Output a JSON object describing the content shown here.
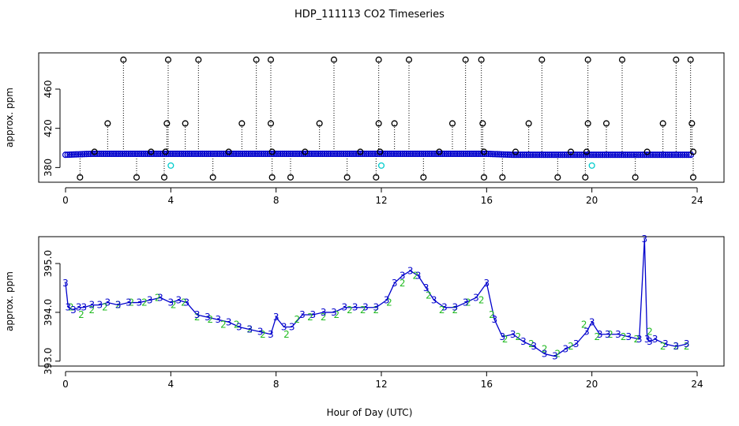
{
  "title": "HDP_111113  CO2 Timeseries",
  "xlabel": "Hour of Day (UTC)",
  "colors": {
    "outer_points": "#000000",
    "main_points": "#0000cc",
    "cyan_points": "#00cccc",
    "line": "#0000cc",
    "green_points": "#22bb22",
    "blue_labels": "#0000cc"
  },
  "chart_data": [
    {
      "type": "scatter",
      "panel": "top",
      "ylabel": "approx. ppm",
      "xlim": [
        0,
        24
      ],
      "ylim": [
        365,
        497
      ],
      "x_ticks": [
        0,
        4,
        8,
        12,
        16,
        20,
        24
      ],
      "y_ticks": [
        380,
        420,
        460
      ],
      "baseline": {
        "x": [
          0,
          1,
          2,
          3,
          4,
          5,
          6,
          7,
          8,
          9,
          10,
          11,
          12,
          13,
          14,
          15,
          16,
          17,
          18,
          19,
          20,
          21,
          22,
          23,
          23.8
        ],
        "y": [
          393,
          394,
          394,
          394,
          394,
          394,
          394,
          394,
          394,
          394,
          394,
          394,
          394,
          394,
          394,
          394,
          394,
          393,
          393,
          393,
          393,
          393,
          393,
          393,
          393
        ]
      },
      "outliers_high": [
        {
          "x": 2.2,
          "y": 490
        },
        {
          "x": 3.9,
          "y": 490
        },
        {
          "x": 5.05,
          "y": 490
        },
        {
          "x": 7.25,
          "y": 490
        },
        {
          "x": 7.8,
          "y": 490
        },
        {
          "x": 10.2,
          "y": 490
        },
        {
          "x": 11.9,
          "y": 490
        },
        {
          "x": 13.05,
          "y": 490
        },
        {
          "x": 15.2,
          "y": 490
        },
        {
          "x": 15.8,
          "y": 490
        },
        {
          "x": 18.1,
          "y": 490
        },
        {
          "x": 19.85,
          "y": 490
        },
        {
          "x": 21.15,
          "y": 490
        },
        {
          "x": 23.2,
          "y": 490
        },
        {
          "x": 23.75,
          "y": 490
        }
      ],
      "outliers_mid": [
        {
          "x": 1.6,
          "y": 425
        },
        {
          "x": 3.85,
          "y": 425
        },
        {
          "x": 4.55,
          "y": 425
        },
        {
          "x": 6.7,
          "y": 425
        },
        {
          "x": 7.8,
          "y": 425
        },
        {
          "x": 9.65,
          "y": 425
        },
        {
          "x": 11.9,
          "y": 425
        },
        {
          "x": 12.5,
          "y": 425
        },
        {
          "x": 14.7,
          "y": 425
        },
        {
          "x": 15.85,
          "y": 425
        },
        {
          "x": 17.6,
          "y": 425
        },
        {
          "x": 19.85,
          "y": 425
        },
        {
          "x": 20.55,
          "y": 425
        },
        {
          "x": 22.7,
          "y": 425
        },
        {
          "x": 23.8,
          "y": 425
        }
      ],
      "outliers_low": [
        {
          "x": 0.55,
          "y": 370
        },
        {
          "x": 2.7,
          "y": 370
        },
        {
          "x": 3.75,
          "y": 370
        },
        {
          "x": 5.6,
          "y": 370
        },
        {
          "x": 7.85,
          "y": 370
        },
        {
          "x": 8.55,
          "y": 370
        },
        {
          "x": 10.7,
          "y": 370
        },
        {
          "x": 11.8,
          "y": 370
        },
        {
          "x": 13.6,
          "y": 370
        },
        {
          "x": 15.9,
          "y": 370
        },
        {
          "x": 16.6,
          "y": 370
        },
        {
          "x": 18.7,
          "y": 370
        },
        {
          "x": 19.75,
          "y": 370
        },
        {
          "x": 21.65,
          "y": 370
        },
        {
          "x": 23.85,
          "y": 370
        }
      ],
      "outliers_near": [
        {
          "x": 1.1,
          "y": 396
        },
        {
          "x": 3.25,
          "y": 396
        },
        {
          "x": 3.8,
          "y": 396
        },
        {
          "x": 6.2,
          "y": 396
        },
        {
          "x": 7.85,
          "y": 396
        },
        {
          "x": 9.1,
          "y": 396
        },
        {
          "x": 11.2,
          "y": 396
        },
        {
          "x": 11.95,
          "y": 396
        },
        {
          "x": 14.2,
          "y": 396
        },
        {
          "x": 15.9,
          "y": 396
        },
        {
          "x": 17.1,
          "y": 396
        },
        {
          "x": 19.2,
          "y": 396
        },
        {
          "x": 19.8,
          "y": 396
        },
        {
          "x": 22.1,
          "y": 396
        },
        {
          "x": 23.85,
          "y": 396
        }
      ],
      "cyan_points": [
        {
          "x": 4.0,
          "y": 382
        },
        {
          "x": 12.0,
          "y": 382
        },
        {
          "x": 20.0,
          "y": 382
        }
      ]
    },
    {
      "type": "line",
      "panel": "bottom",
      "ylabel": "approx. ppm",
      "xlim": [
        0,
        24
      ],
      "ylim": [
        392.9,
        395.55
      ],
      "x_ticks": [
        0,
        4,
        8,
        12,
        16,
        20,
        24
      ],
      "y_ticks": [
        393.0,
        394.0,
        395.0
      ],
      "series": [
        {
          "marker": "3",
          "x": [
            0.0,
            0.1,
            0.3,
            0.5,
            0.7,
            1.0,
            1.3,
            1.6,
            2.0,
            2.4,
            2.8,
            3.2,
            3.6,
            4.0,
            4.3,
            4.6,
            5.0,
            5.4,
            5.8,
            6.2,
            6.6,
            7.0,
            7.4,
            7.8,
            8.0,
            8.3,
            8.6,
            9.0,
            9.4,
            9.8,
            10.2,
            10.6,
            11.0,
            11.4,
            11.8,
            12.2,
            12.5,
            12.8,
            13.1,
            13.4,
            13.7,
            14.0,
            14.4,
            14.8,
            15.2,
            15.6,
            16.0,
            16.3,
            16.6,
            17.0,
            17.4,
            17.8,
            18.2,
            18.6,
            19.0,
            19.4,
            19.8,
            20.0,
            20.3,
            20.6,
            21.0,
            21.4,
            21.8,
            22.0,
            22.1,
            22.2,
            22.4,
            22.8,
            23.2,
            23.6
          ],
          "y": [
            394.6,
            394.1,
            394.05,
            394.1,
            394.1,
            394.15,
            394.15,
            394.2,
            394.15,
            394.2,
            394.2,
            394.25,
            394.3,
            394.2,
            394.25,
            394.2,
            393.95,
            393.9,
            393.85,
            393.8,
            393.7,
            393.65,
            393.6,
            393.55,
            393.9,
            393.7,
            393.7,
            393.95,
            393.95,
            394.0,
            394.0,
            394.1,
            394.1,
            394.1,
            394.1,
            394.25,
            394.6,
            394.75,
            394.85,
            394.75,
            394.5,
            394.25,
            394.1,
            394.1,
            394.2,
            394.3,
            394.6,
            393.85,
            393.5,
            393.55,
            393.4,
            393.3,
            393.15,
            393.1,
            393.25,
            393.35,
            393.6,
            393.8,
            393.55,
            393.55,
            393.55,
            393.5,
            393.45,
            395.5,
            393.45,
            393.4,
            393.45,
            393.35,
            393.3,
            393.35
          ]
        },
        {
          "marker": "2",
          "x": [
            0.2,
            0.6,
            1.0,
            1.5,
            2.0,
            2.5,
            3.0,
            3.5,
            4.1,
            4.5,
            5.0,
            5.5,
            6.0,
            6.5,
            7.0,
            7.5,
            8.4,
            8.8,
            9.3,
            9.8,
            10.3,
            10.8,
            11.3,
            11.8,
            12.3,
            12.8,
            13.3,
            13.8,
            14.3,
            14.8,
            15.3,
            15.8,
            16.2,
            16.7,
            17.2,
            17.7,
            18.2,
            18.7,
            19.2,
            19.7,
            20.2,
            20.7,
            21.2,
            21.7,
            22.2,
            22.7,
            23.2,
            23.6
          ],
          "y": [
            394.1,
            393.95,
            394.05,
            394.1,
            394.15,
            394.2,
            394.2,
            394.3,
            394.15,
            394.2,
            393.9,
            393.85,
            393.75,
            393.75,
            393.65,
            393.55,
            393.55,
            393.85,
            393.9,
            393.9,
            393.95,
            394.05,
            394.05,
            394.05,
            394.2,
            394.6,
            394.75,
            394.35,
            394.05,
            394.05,
            394.2,
            394.25,
            393.95,
            393.45,
            393.5,
            393.35,
            393.25,
            393.15,
            393.3,
            393.75,
            393.5,
            393.55,
            393.5,
            393.45,
            393.6,
            393.3,
            393.3,
            393.3
          ]
        }
      ]
    }
  ]
}
